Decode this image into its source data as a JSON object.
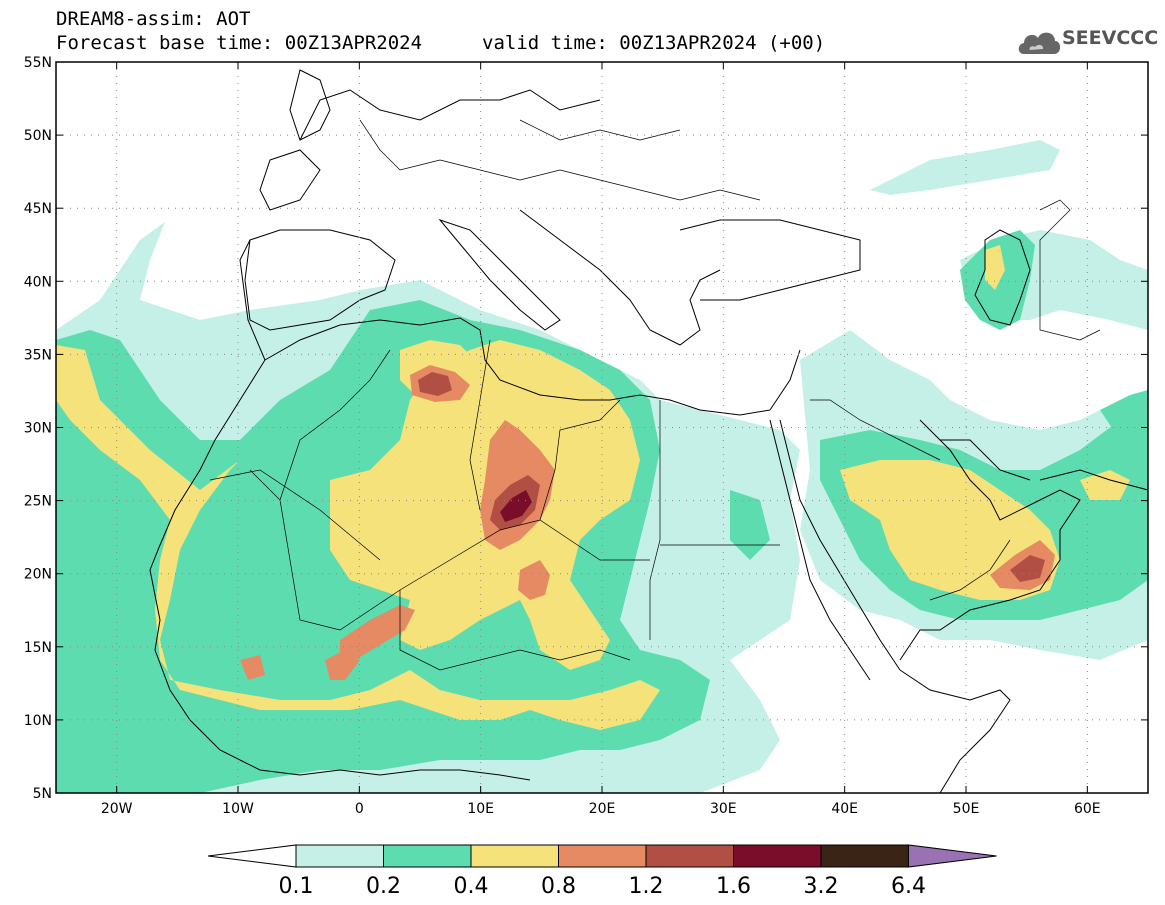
{
  "title": {
    "line1": "DREAM8-assim: AOT",
    "base_time": "Forecast base time: 00Z13APR2024",
    "valid_time": "valid time: 00Z13APR2024 (+00)"
  },
  "logo": {
    "text": "SEEVCCC",
    "icon": "cloud-icon"
  },
  "map": {
    "lon_range": [
      -25,
      65
    ],
    "lat_range": [
      5,
      55
    ],
    "lat_ticks": [
      {
        "value": 55,
        "label": "55N"
      },
      {
        "value": 50,
        "label": "50N"
      },
      {
        "value": 45,
        "label": "45N"
      },
      {
        "value": 40,
        "label": "40N"
      },
      {
        "value": 35,
        "label": "35N"
      },
      {
        "value": 30,
        "label": "30N"
      },
      {
        "value": 25,
        "label": "25N"
      },
      {
        "value": 20,
        "label": "20N"
      },
      {
        "value": 15,
        "label": "15N"
      },
      {
        "value": 10,
        "label": "10N"
      },
      {
        "value": 5,
        "label": "5N"
      }
    ],
    "lon_ticks": [
      {
        "value": -20,
        "label": "20W"
      },
      {
        "value": -10,
        "label": "10W"
      },
      {
        "value": 0,
        "label": "0"
      },
      {
        "value": 10,
        "label": "10E"
      },
      {
        "value": 20,
        "label": "20E"
      },
      {
        "value": 30,
        "label": "30E"
      },
      {
        "value": 40,
        "label": "40E"
      },
      {
        "value": 50,
        "label": "50E"
      },
      {
        "value": 60,
        "label": "60E"
      }
    ],
    "grid": "dotted"
  },
  "colorbar": {
    "colors": [
      "#ffffff",
      "#c4f0e8",
      "#5ddcb0",
      "#f5e27a",
      "#e58a62",
      "#b24f44",
      "#7a0e2a",
      "#3a2416",
      "#9a72b4"
    ],
    "labels": [
      "0.1",
      "0.2",
      "0.4",
      "0.8",
      "1.2",
      "1.6",
      "3.2",
      "6.4"
    ]
  }
}
